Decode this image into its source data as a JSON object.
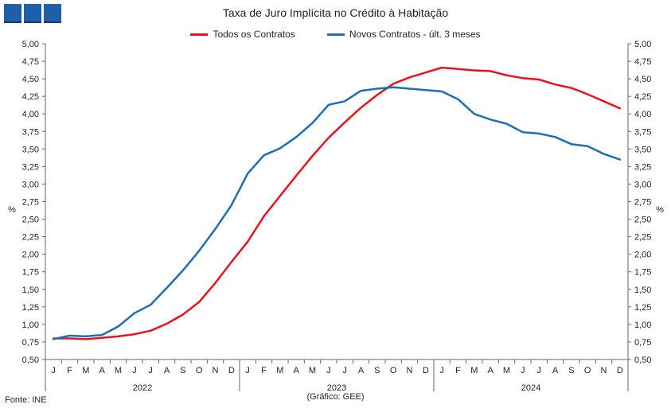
{
  "chart_data": {
    "type": "line",
    "title": "Taxa de Juro Implícita  no Crédito à Habitação",
    "ylabel": "%",
    "y2label": "%",
    "ylim": [
      0.5,
      5.0
    ],
    "ytick_labels": [
      "0,50",
      "0,75",
      "1,00",
      "1,25",
      "1,50",
      "1,75",
      "2,00",
      "2,25",
      "2,50",
      "2,75",
      "3,00",
      "3,25",
      "3,50",
      "3,75",
      "4,00",
      "4,25",
      "4,50",
      "4,75",
      "5,00"
    ],
    "months": [
      "J",
      "F",
      "M",
      "A",
      "M",
      "J",
      "J",
      "A",
      "S",
      "O",
      "N",
      "D",
      "J",
      "F",
      "M",
      "A",
      "M",
      "J",
      "J",
      "A",
      "S",
      "O",
      "N",
      "D",
      "J",
      "F",
      "M",
      "A",
      "M",
      "J",
      "J",
      "A",
      "S",
      "O",
      "N",
      "D"
    ],
    "years": [
      "2022",
      "2023",
      "2024"
    ],
    "legend_position": "top-center",
    "grid": false,
    "series": [
      {
        "name": "Todos os Contratos",
        "color": "#e8131c",
        "values": [
          0.8,
          0.8,
          0.79,
          0.81,
          0.83,
          0.86,
          0.91,
          1.01,
          1.14,
          1.32,
          1.59,
          1.89,
          2.18,
          2.54,
          2.83,
          3.12,
          3.4,
          3.66,
          3.88,
          4.09,
          4.27,
          4.43,
          4.52,
          4.59,
          4.66,
          4.64,
          4.62,
          4.61,
          4.55,
          4.51,
          4.49,
          4.42,
          4.37,
          4.28,
          4.18,
          4.08
        ]
      },
      {
        "name": "Novos Contratos - últ. 3 meses",
        "color": "#1a6fb5",
        "values": [
          0.79,
          0.84,
          0.83,
          0.85,
          0.97,
          1.16,
          1.28,
          1.52,
          1.77,
          2.05,
          2.36,
          2.7,
          3.15,
          3.41,
          3.51,
          3.67,
          3.87,
          4.13,
          4.18,
          4.33,
          4.36,
          4.38,
          4.36,
          4.34,
          4.32,
          4.21,
          4.0,
          3.92,
          3.86,
          3.74,
          3.72,
          3.67,
          3.57,
          3.54,
          3.43,
          3.35
        ]
      }
    ]
  },
  "footer": {
    "source": "Fonte: INE",
    "credit": "(Gráfico: GEE)"
  },
  "logo": {
    "blocks": 3,
    "color": "#1f5ea8"
  }
}
